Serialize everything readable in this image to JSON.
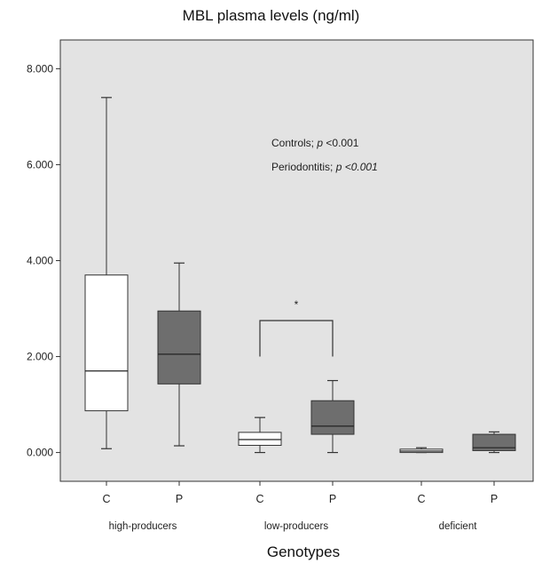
{
  "chart_data": {
    "type": "boxplot",
    "title": "MBL plasma levels (ng/ml)",
    "xlabel": "Genotypes",
    "ylabel": "",
    "ylim": [
      -0.6,
      8.6
    ],
    "y_ticks": [
      0,
      2,
      4,
      6,
      8
    ],
    "y_tick_labels": [
      "0.000",
      "2.000",
      "4.000",
      "6.000",
      "8.000"
    ],
    "grid": false,
    "background": "#e3e3e3",
    "series_colors": {
      "C": "#ffffff",
      "P": "#6e6e6e"
    },
    "groups": [
      {
        "label": "high-producers",
        "boxes": [
          {
            "category": "C",
            "min": 0.08,
            "q1": 0.87,
            "median": 1.7,
            "q3": 3.7,
            "max": 7.4
          },
          {
            "category": "P",
            "min": 0.14,
            "q1": 1.43,
            "median": 2.05,
            "q3": 2.95,
            "max": 3.95
          }
        ]
      },
      {
        "label": "low-producers",
        "boxes": [
          {
            "category": "C",
            "min": 0.0,
            "q1": 0.15,
            "median": 0.27,
            "q3": 0.42,
            "max": 0.73
          },
          {
            "category": "P",
            "min": 0.0,
            "q1": 0.38,
            "median": 0.55,
            "q3": 1.08,
            "max": 1.5
          }
        ]
      },
      {
        "label": "deficient",
        "boxes": [
          {
            "category": "C",
            "min": 0.0,
            "q1": 0.0,
            "median": 0.03,
            "q3": 0.07,
            "max": 0.1
          },
          {
            "category": "P",
            "min": 0.0,
            "q1": 0.04,
            "median": 0.1,
            "q3": 0.38,
            "max": 0.43
          }
        ]
      }
    ],
    "annotations": {
      "controls": {
        "prefix": "Controls; ",
        "p": "p",
        "rest": " <0.001"
      },
      "periodontitis": {
        "prefix": "Periodontitis; ",
        "p": "p",
        "rest": " <0.001"
      }
    },
    "significance": {
      "symbol": "*",
      "group": "low-producers",
      "y": 2.0,
      "y_top": 2.75
    }
  }
}
